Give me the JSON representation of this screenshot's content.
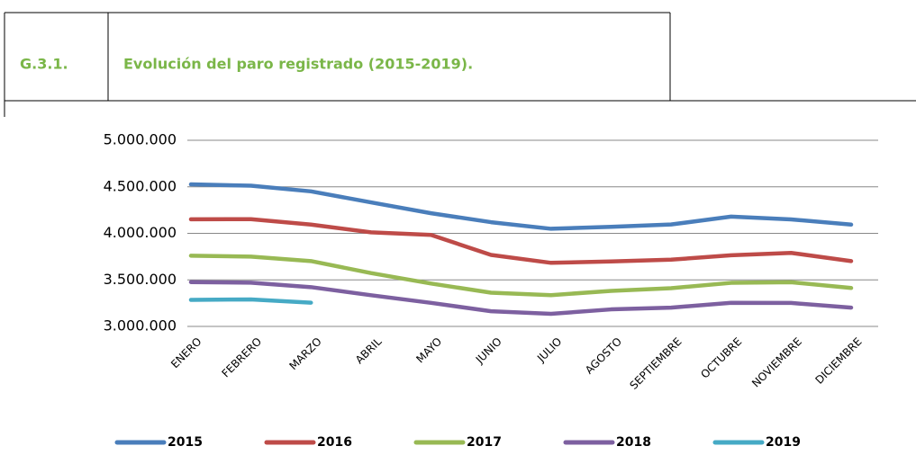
{
  "header": {
    "code": "G.3.1.",
    "title": "Evolución del paro registrado (2015-2019)."
  },
  "chart_data": {
    "type": "line",
    "categories": [
      "ENERO",
      "FEBRERO",
      "MARZO",
      "ABRIL",
      "MAYO",
      "JUNIO",
      "JULIO",
      "AGOSTO",
      "SEPTIEMBRE",
      "OCTUBRE",
      "NOVIEMBRE",
      "DICIEMBRE"
    ],
    "series": [
      {
        "name": "2015",
        "color": "#4a7ebb",
        "values": [
          4526000,
          4512000,
          4451000,
          4333000,
          4216000,
          4120000,
          4049000,
          4070000,
          4095000,
          4180000,
          4150000,
          4094000
        ]
      },
      {
        "name": "2016",
        "color": "#be4b48",
        "values": [
          4151000,
          4152000,
          4094000,
          4011000,
          3983000,
          3768000,
          3683000,
          3698000,
          3717000,
          3765000,
          3790000,
          3702000
        ]
      },
      {
        "name": "2017",
        "color": "#98b954",
        "values": [
          3760000,
          3750000,
          3702000,
          3573000,
          3461000,
          3362000,
          3336000,
          3382000,
          3411000,
          3468000,
          3475000,
          3413000
        ]
      },
      {
        "name": "2018",
        "color": "#7d60a0",
        "values": [
          3476000,
          3470000,
          3422000,
          3335000,
          3253000,
          3163000,
          3135000,
          3183000,
          3202000,
          3254000,
          3252000,
          3202000
        ]
      },
      {
        "name": "2019",
        "color": "#46aac5",
        "values": [
          3285000,
          3290000,
          3255000,
          null,
          null,
          null,
          null,
          null,
          null,
          null,
          null,
          null
        ]
      }
    ],
    "ylim": [
      3000000,
      5000000
    ],
    "yticks": [
      {
        "value": 3000000,
        "label": "3.000.000"
      },
      {
        "value": 3500000,
        "label": "3.500.000"
      },
      {
        "value": 4000000,
        "label": "4.000.000"
      },
      {
        "value": 4500000,
        "label": "4.500.000"
      },
      {
        "value": 5000000,
        "label": "5.000.000"
      }
    ],
    "grid": true,
    "legend": "bottom"
  }
}
